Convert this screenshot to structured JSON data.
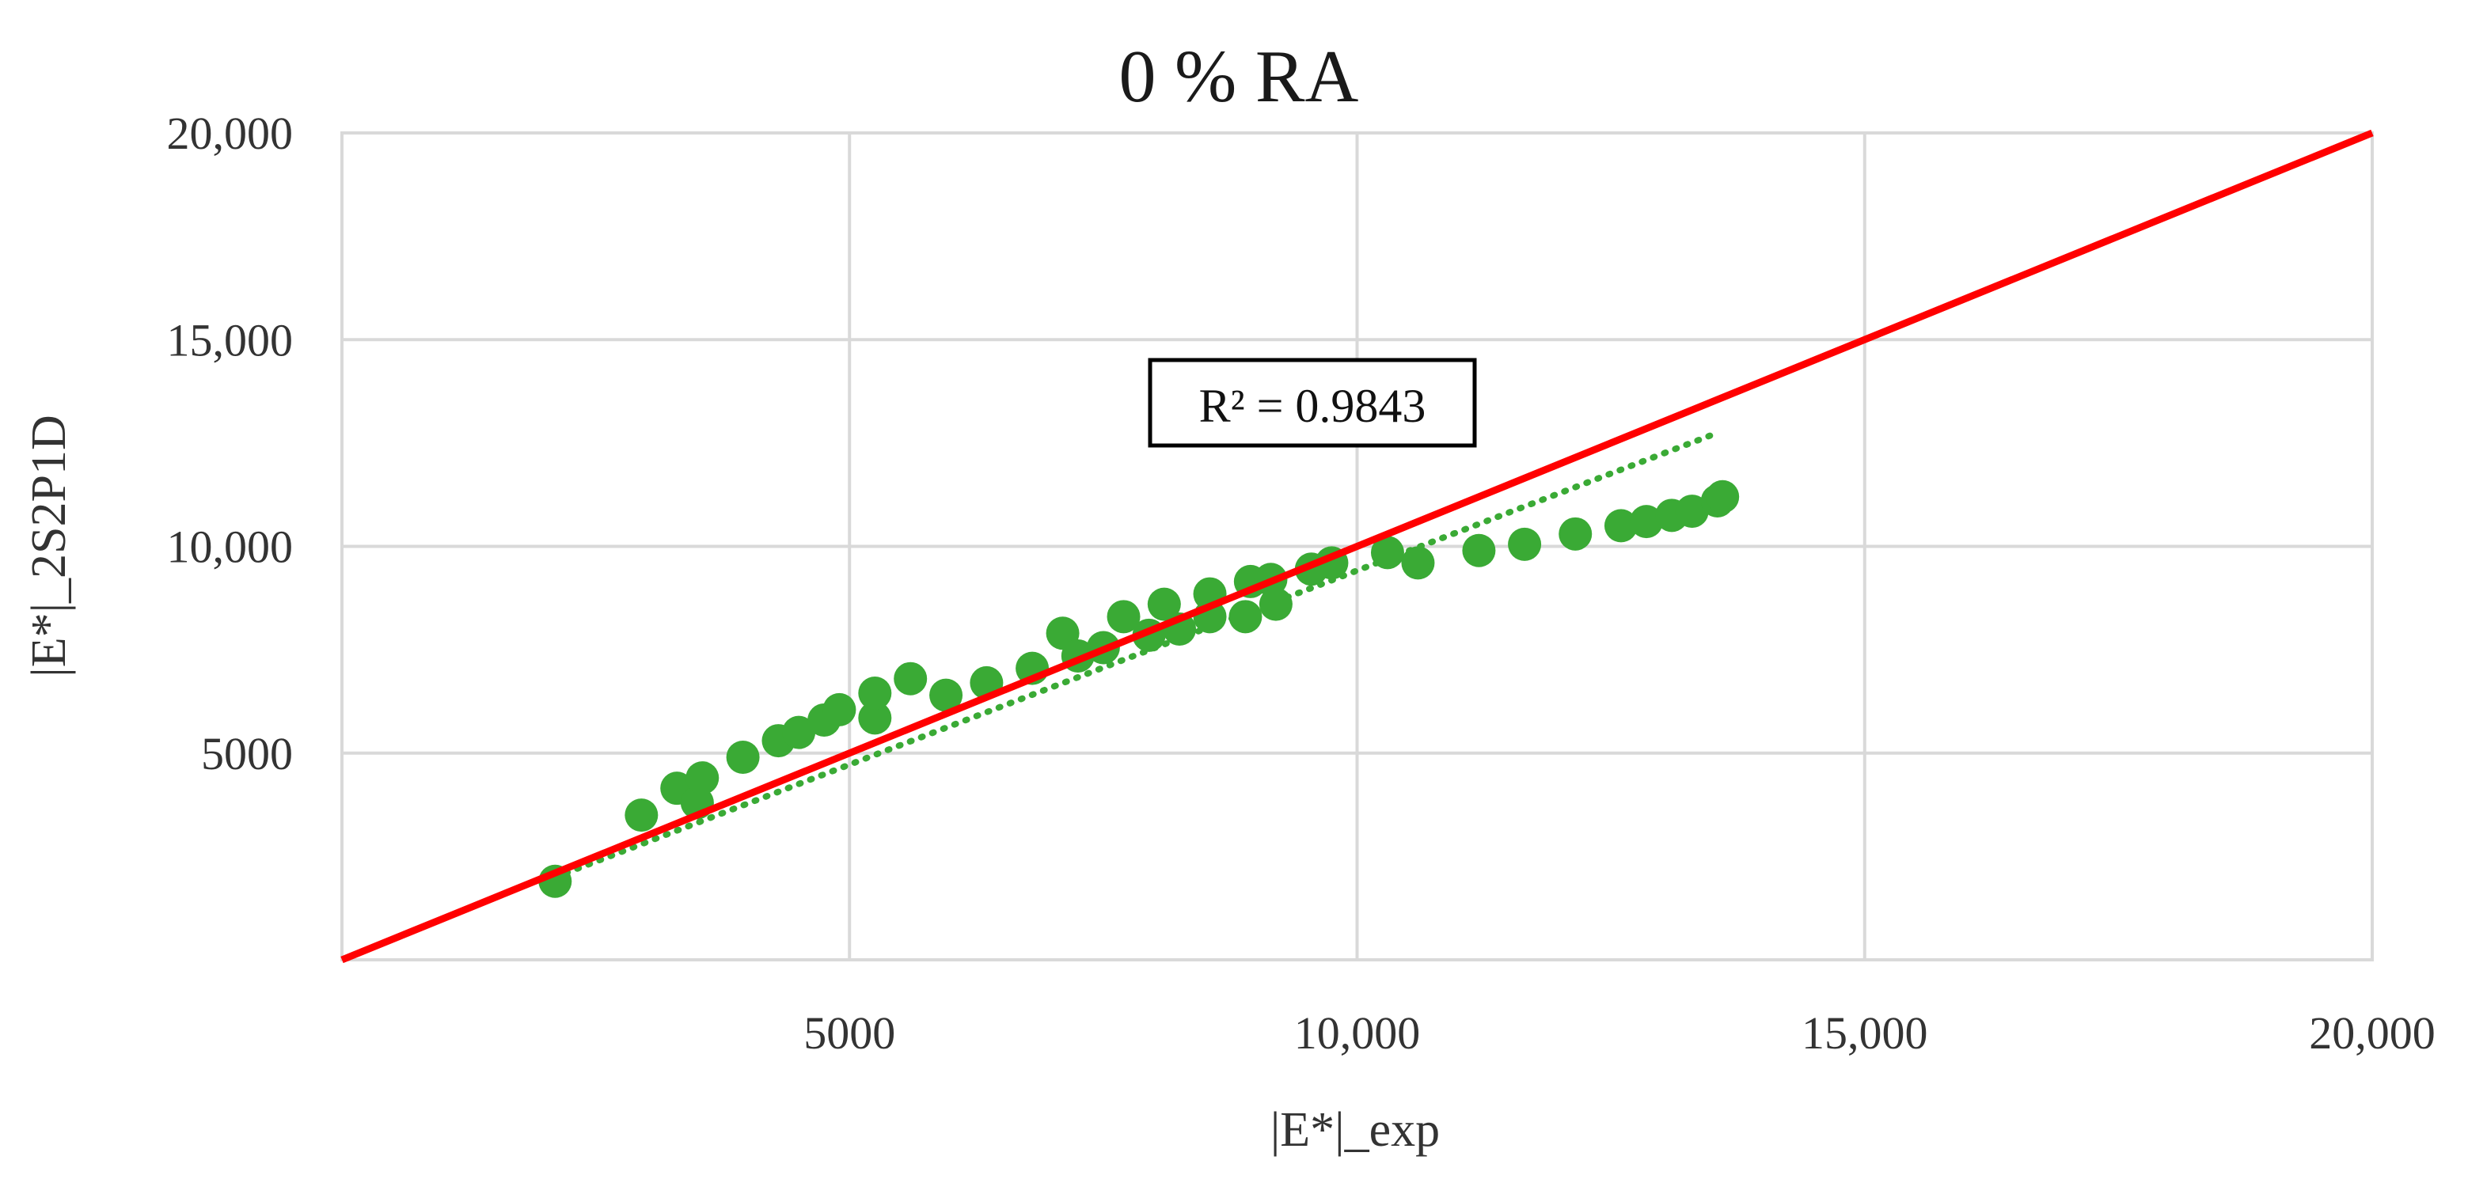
{
  "chart_data": {
    "type": "scatter",
    "title": "0 %  RA",
    "xlabel": "|E*|_exp",
    "ylabel": "|E*|_2S2P1D",
    "xlim": [
      0,
      20000
    ],
    "ylim": [
      0,
      20000
    ],
    "x_ticks": [
      {
        "value": 5000,
        "label": "5000"
      },
      {
        "value": 10000,
        "label": "10,000"
      },
      {
        "value": 15000,
        "label": "15,000"
      },
      {
        "value": 20000,
        "label": "20,000"
      }
    ],
    "y_ticks": [
      {
        "value": 5000,
        "label": "5000"
      },
      {
        "value": 10000,
        "label": "10,000"
      },
      {
        "value": 15000,
        "label": "15,000"
      },
      {
        "value": 20000,
        "label": "20,000"
      }
    ],
    "grid": true,
    "legend": "none",
    "r2_label": "R² = 0.9843",
    "point_color": "#3aaa35",
    "equality_line_color": "#ff0000",
    "trendline_color": "#3aaa35",
    "equality_line": {
      "from": [
        0,
        0
      ],
      "to": [
        20000,
        20000
      ]
    },
    "trendline": {
      "from": [
        2100,
        2000
      ],
      "to": [
        13500,
        12700
      ]
    },
    "points": [
      [
        2100,
        1900
      ],
      [
        2950,
        3500
      ],
      [
        3300,
        4150
      ],
      [
        3500,
        3800
      ],
      [
        3550,
        4400
      ],
      [
        3950,
        4900
      ],
      [
        4300,
        5300
      ],
      [
        4500,
        5500
      ],
      [
        4750,
        5800
      ],
      [
        4900,
        6050
      ],
      [
        5250,
        5850
      ],
      [
        5250,
        6450
      ],
      [
        5600,
        6800
      ],
      [
        5950,
        6400
      ],
      [
        6350,
        6700
      ],
      [
        6800,
        7050
      ],
      [
        7100,
        7900
      ],
      [
        7250,
        7350
      ],
      [
        7500,
        7550
      ],
      [
        7700,
        8300
      ],
      [
        7950,
        7850
      ],
      [
        8100,
        8600
      ],
      [
        8250,
        8000
      ],
      [
        8550,
        8300
      ],
      [
        8550,
        8850
      ],
      [
        8900,
        8300
      ],
      [
        8950,
        9150
      ],
      [
        9150,
        9200
      ],
      [
        9200,
        8600
      ],
      [
        9550,
        9450
      ],
      [
        9750,
        9600
      ],
      [
        10300,
        9850
      ],
      [
        10600,
        9600
      ],
      [
        11200,
        9900
      ],
      [
        11650,
        10050
      ],
      [
        12150,
        10300
      ],
      [
        12600,
        10500
      ],
      [
        12850,
        10600
      ],
      [
        13100,
        10750
      ],
      [
        13300,
        10850
      ],
      [
        13550,
        11100
      ],
      [
        13600,
        11200
      ]
    ]
  }
}
